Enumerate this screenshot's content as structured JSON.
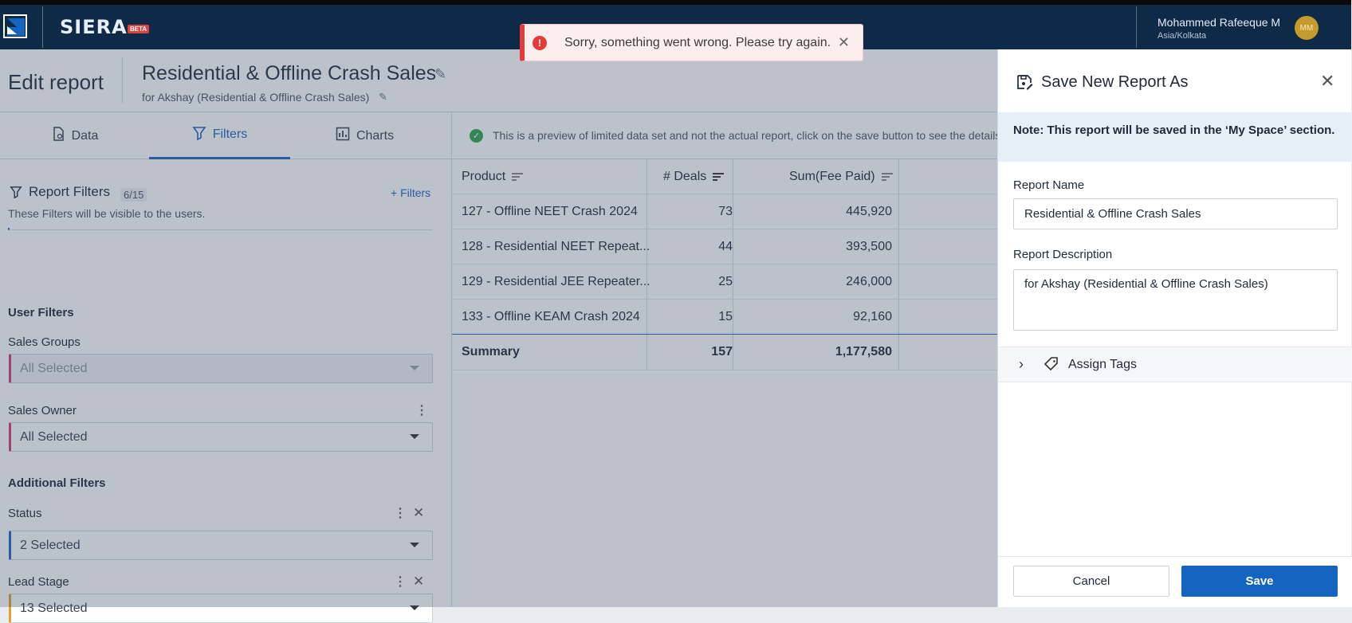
{
  "app": {
    "brand": "SIERA",
    "badge": "BETA"
  },
  "user": {
    "name": "Mohammed Rafeeque M",
    "timezone": "Asia/Kolkata",
    "initials": "MM"
  },
  "toast": {
    "message": "Sorry, something went wrong. Please try again.",
    "icon": "!"
  },
  "page": {
    "heading": "Edit report",
    "report_title": "Residential & Offline Crash Sales",
    "report_subtitle": "for Akshay (Residential & Offline Crash Sales)"
  },
  "tabs": [
    {
      "label": "Data",
      "icon": "data-icon"
    },
    {
      "label": "Filters",
      "icon": "filter-icon",
      "active": true
    },
    {
      "label": "Charts",
      "icon": "chart-icon"
    }
  ],
  "filters": {
    "title": "Report Filters",
    "count": "6/15",
    "add_label": "+ Filters",
    "description": "These Filters will be visible to the users.",
    "user_filters_heading": "User Filters",
    "additional_heading": "Additional Filters",
    "items": [
      {
        "label": "Sales Groups",
        "value": "All Selected",
        "disabled": true,
        "accent": "#d63a7a"
      },
      {
        "label": "Sales Owner",
        "value": "All Selected",
        "accent": "#d63a7a"
      },
      {
        "label": "Status",
        "value": "2 Selected",
        "accent": "#1e63c4"
      },
      {
        "label": "Lead Stage",
        "value": "13 Selected",
        "accent": "#e0a42a"
      }
    ]
  },
  "preview": {
    "banner": "This is a preview of limited data set and not the actual report, click on the save button to see the details."
  },
  "table": {
    "headers": [
      "Product",
      "# Deals",
      "Sum(Fee Paid)"
    ],
    "rows": [
      [
        "127 - Offline NEET Crash 2024",
        "73",
        "445,920"
      ],
      [
        "128 - Residential NEET Repeat...",
        "44",
        "393,500"
      ],
      [
        "129 - Residential JEE Repeater...",
        "25",
        "246,000"
      ],
      [
        "133 - Offline KEAM Crash 2024",
        "15",
        "92,160"
      ]
    ],
    "summary": [
      "Summary",
      "157",
      "1,177,580"
    ]
  },
  "drawer": {
    "title": "Save New Report As",
    "note": "Note: This report will be saved in the ‘My Space’ section.",
    "name_label": "Report Name",
    "name_value": "Residential & Offline Crash Sales",
    "desc_label": "Report Description",
    "desc_value": "for Akshay (Residential & Offline Crash Sales)",
    "tags_label": "Assign Tags",
    "cancel": "Cancel",
    "save": "Save"
  },
  "colors": {
    "header_bg": "#0e2a47",
    "primary": "#1565c0",
    "error": "#e23b3b",
    "success": "#2fa44f"
  }
}
